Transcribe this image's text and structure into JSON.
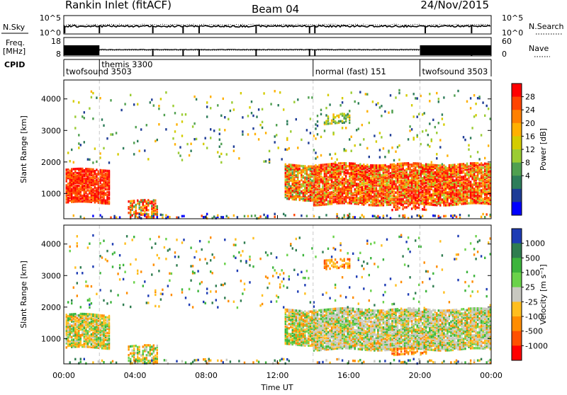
{
  "header": {
    "station": "Rankin Inlet (fitACF)",
    "beam": "Beam 04",
    "date": "24/Nov/2015"
  },
  "status_panels": {
    "nsky_label": "N.Sky",
    "nsky_ticks": [
      "10^5",
      "10^0"
    ],
    "nsearch_label": "N.Search",
    "nsearch_ticks": [
      "10^5",
      "10^0"
    ],
    "freq_label_1": "Freq.",
    "freq_label_2": "[MHz]",
    "freq_ticks": [
      "18",
      "8"
    ],
    "nave_label": "Nave",
    "nave_ticks": [
      "60",
      "0"
    ],
    "cpid_label": "CPID",
    "modes": [
      {
        "name": "twofsound 3503",
        "start_hour": 0
      },
      {
        "name": "themis 3300",
        "start_hour": 2
      },
      {
        "name": "normal (fast) 151",
        "start_hour": 14
      },
      {
        "name": "twofsound 3503",
        "start_hour": 20
      }
    ]
  },
  "chart_data": [
    {
      "type": "heatmap",
      "quantity": "Power",
      "ylabel": "Slant Range [km]",
      "colorbar_label": "Power [dB]",
      "colorbar_ticks": [
        "28",
        "24",
        "20",
        "16",
        "12",
        "8",
        "4"
      ],
      "colorbar_colors": [
        "#ff0000",
        "#ff4400",
        "#ff8000",
        "#ffb000",
        "#d4cc00",
        "#9bcc33",
        "#50a050",
        "#2e7d5a",
        "#1e3c96",
        "#0000ff"
      ],
      "x_range_hours": [
        0,
        24
      ],
      "ylim": [
        200,
        4600
      ],
      "yticks": [
        1000,
        2000,
        3000,
        4000
      ]
    },
    {
      "type": "heatmap",
      "quantity": "Velocity",
      "ylabel": "Slant Range [km]",
      "colorbar_label": "Velocity [m s⁻¹]",
      "colorbar_ticks": [
        "1000",
        "500",
        "100",
        "25",
        "-25",
        "-100",
        "-500",
        "-1000"
      ],
      "colorbar_colors": [
        "#1e3cb4",
        "#2f7d50",
        "#3cb43c",
        "#6ad24a",
        "#c8c8c0",
        "#ffbe1e",
        "#ff8c00",
        "#ff5000",
        "#ff0000"
      ],
      "x_range_hours": [
        0,
        24
      ],
      "ylim": [
        200,
        4600
      ],
      "yticks": [
        1000,
        2000,
        3000,
        4000
      ],
      "xticks": [
        "00:00",
        "04:00",
        "08:00",
        "12:00",
        "16:00",
        "20:00",
        "00:00"
      ],
      "xlabel": "Time UT"
    }
  ]
}
